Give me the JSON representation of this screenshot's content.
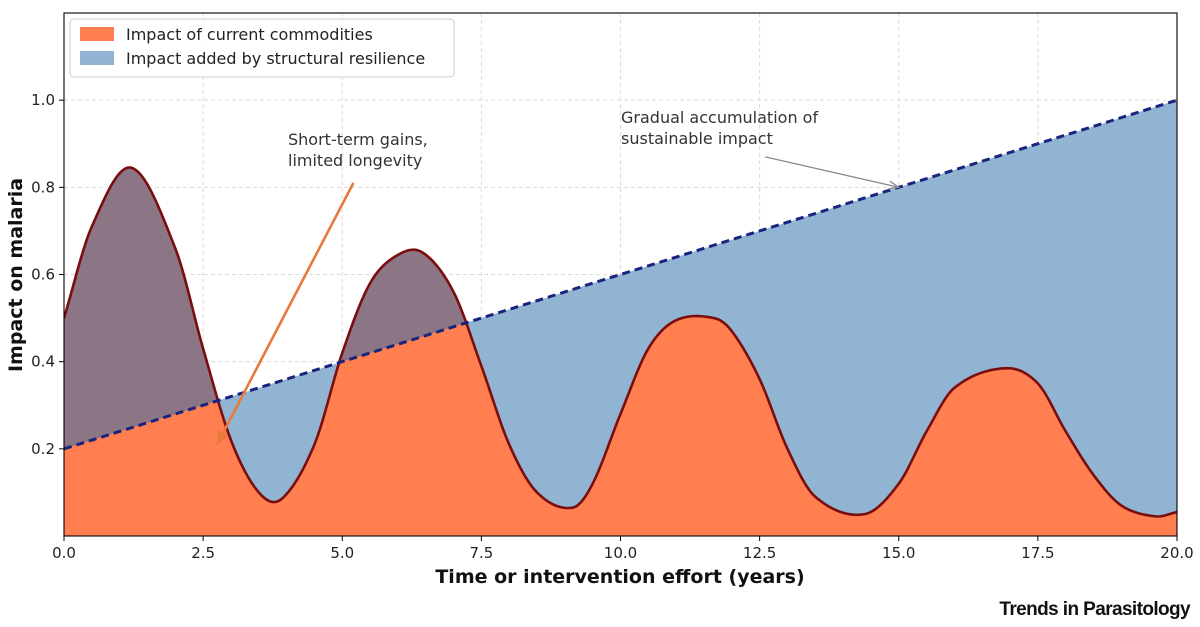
{
  "chart_data": {
    "type": "area",
    "xlabel": "Time or intervention effort (years)",
    "ylabel": "Impact on malaria",
    "xlim": [
      0,
      20
    ],
    "ylim": [
      0,
      1.2
    ],
    "xticks": [
      0,
      2.5,
      5,
      7.5,
      10,
      12.5,
      15,
      17.5,
      20
    ],
    "xtick_labels": [
      "0.0",
      "2.5",
      "5.0",
      "7.5",
      "10.0",
      "12.5",
      "15.0",
      "17.5",
      "20.0"
    ],
    "yticks": [
      0.2,
      0.4,
      0.6,
      0.8,
      1.0
    ],
    "ytick_labels": [
      "0.2",
      "0.4",
      "0.6",
      "0.8",
      "1.0"
    ],
    "grid": true,
    "legend_position": "top-left",
    "series": [
      {
        "name": "Impact of current commodities",
        "color": "#ff7f50",
        "x": [
          0,
          0.5,
          1.21,
          2.0,
          2.5,
          3.0,
          3.5,
          3.91,
          4.5,
          5.0,
          5.5,
          6.0,
          6.45,
          7.0,
          7.5,
          8.0,
          8.5,
          9.14,
          9.5,
          10.0,
          10.5,
          11.0,
          11.68,
          12.0,
          12.5,
          13.0,
          13.5,
          14.38,
          15.0,
          15.5,
          16.0,
          16.92,
          17.5,
          18.0,
          18.5,
          19.0,
          19.62,
          20.0
        ],
        "values": [
          0.5,
          0.71,
          0.845,
          0.66,
          0.43,
          0.22,
          0.1,
          0.085,
          0.21,
          0.42,
          0.58,
          0.645,
          0.65,
          0.56,
          0.39,
          0.21,
          0.1,
          0.065,
          0.12,
          0.28,
          0.43,
          0.495,
          0.5,
          0.47,
          0.36,
          0.2,
          0.09,
          0.05,
          0.12,
          0.24,
          0.34,
          0.385,
          0.35,
          0.24,
          0.14,
          0.07,
          0.045,
          0.055
        ]
      },
      {
        "name": "Impact added by structural resilience",
        "color": "#92b4d3",
        "line_color": "#1a237e",
        "x": [
          0,
          20
        ],
        "values": [
          0.2,
          1.0
        ]
      }
    ],
    "annotations": [
      {
        "lines": [
          "Short-term gains,",
          "limited longevity"
        ],
        "arrow_from": [
          5.2,
          0.81
        ],
        "arrow_to": [
          2.75,
          0.21
        ],
        "color": "#e8793e"
      },
      {
        "lines": [
          "Gradual accumulation of",
          "sustainable impact"
        ],
        "arrow_from": [
          12.6,
          0.87
        ],
        "arrow_to": [
          15.0,
          0.8
        ],
        "color": "#8a8a8a"
      }
    ],
    "overlap_color": "#8c7585",
    "curve_color": "#7a0e0e"
  },
  "brand": "Trends in Parasitology"
}
